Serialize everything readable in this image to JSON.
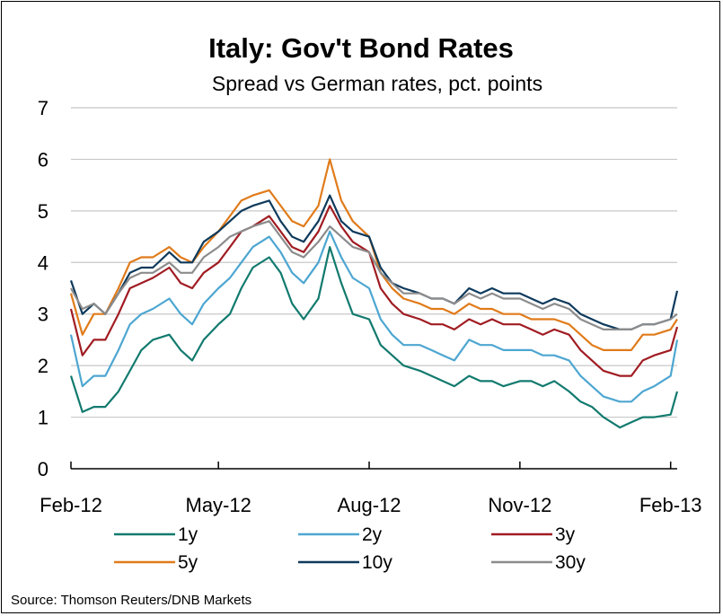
{
  "chart_data": {
    "type": "line",
    "title": "Italy: Gov't Bond Rates",
    "subtitle": "Spread vs German rates, pct. points",
    "source": "Source: Thomson Reuters/DNB Markets",
    "xlabel": "",
    "ylabel": "",
    "ylim": [
      0,
      7
    ],
    "yticks": [
      0,
      1,
      2,
      3,
      4,
      5,
      6,
      7
    ],
    "xticks": [
      "Feb-12",
      "May-12",
      "Aug-12",
      "Nov-12",
      "Feb-13"
    ],
    "grid": true,
    "legend": "bottom",
    "x": [
      "2012-02-01",
      "2012-02-08",
      "2012-02-15",
      "2012-02-22",
      "2012-03-01",
      "2012-03-08",
      "2012-03-15",
      "2012-03-22",
      "2012-04-01",
      "2012-04-08",
      "2012-04-15",
      "2012-04-22",
      "2012-05-01",
      "2012-05-08",
      "2012-05-15",
      "2012-05-22",
      "2012-06-01",
      "2012-06-08",
      "2012-06-15",
      "2012-06-22",
      "2012-07-01",
      "2012-07-08",
      "2012-07-15",
      "2012-07-22",
      "2012-08-01",
      "2012-08-08",
      "2012-08-15",
      "2012-08-22",
      "2012-09-01",
      "2012-09-08",
      "2012-09-15",
      "2012-09-22",
      "2012-10-01",
      "2012-10-08",
      "2012-10-15",
      "2012-10-22",
      "2012-11-01",
      "2012-11-08",
      "2012-11-15",
      "2012-11-22",
      "2012-12-01",
      "2012-12-08",
      "2012-12-15",
      "2012-12-22",
      "2013-01-01",
      "2013-01-08",
      "2013-01-15",
      "2013-01-22",
      "2013-02-01",
      "2013-02-05"
    ],
    "series": [
      {
        "name": "1y",
        "color": "#127a6e",
        "values": [
          1.8,
          1.1,
          1.2,
          1.2,
          1.5,
          1.9,
          2.3,
          2.5,
          2.6,
          2.3,
          2.1,
          2.5,
          2.8,
          3.0,
          3.5,
          3.9,
          4.1,
          3.8,
          3.2,
          2.9,
          3.3,
          4.3,
          3.6,
          3.0,
          2.9,
          2.4,
          2.2,
          2.0,
          1.9,
          1.8,
          1.7,
          1.6,
          1.8,
          1.7,
          1.7,
          1.6,
          1.7,
          1.7,
          1.6,
          1.7,
          1.5,
          1.3,
          1.2,
          1.0,
          0.8,
          0.9,
          1.0,
          1.0,
          1.05,
          1.5
        ]
      },
      {
        "name": "2y",
        "color": "#4da6d1",
        "values": [
          2.6,
          1.6,
          1.8,
          1.8,
          2.3,
          2.8,
          3.0,
          3.1,
          3.3,
          3.0,
          2.8,
          3.2,
          3.5,
          3.7,
          4.0,
          4.3,
          4.5,
          4.2,
          3.8,
          3.6,
          4.0,
          4.6,
          4.1,
          3.7,
          3.5,
          2.9,
          2.6,
          2.4,
          2.4,
          2.3,
          2.2,
          2.1,
          2.5,
          2.4,
          2.4,
          2.3,
          2.3,
          2.3,
          2.2,
          2.2,
          2.1,
          1.8,
          1.6,
          1.4,
          1.3,
          1.3,
          1.5,
          1.6,
          1.8,
          2.5
        ]
      },
      {
        "name": "3y",
        "color": "#a01c22",
        "values": [
          3.1,
          2.2,
          2.5,
          2.5,
          3.0,
          3.5,
          3.6,
          3.7,
          3.9,
          3.6,
          3.5,
          3.8,
          4.0,
          4.3,
          4.6,
          4.7,
          4.9,
          4.6,
          4.3,
          4.2,
          4.6,
          5.1,
          4.7,
          4.4,
          4.2,
          3.5,
          3.2,
          3.0,
          2.9,
          2.8,
          2.8,
          2.7,
          2.9,
          2.8,
          2.9,
          2.8,
          2.8,
          2.7,
          2.6,
          2.7,
          2.6,
          2.3,
          2.1,
          1.9,
          1.8,
          1.8,
          2.1,
          2.2,
          2.3,
          2.75
        ]
      },
      {
        "name": "5y",
        "color": "#e07b1a",
        "values": [
          3.4,
          2.6,
          3.0,
          3.0,
          3.5,
          4.0,
          4.1,
          4.1,
          4.3,
          4.1,
          4.0,
          4.3,
          4.6,
          4.9,
          5.2,
          5.3,
          5.4,
          5.1,
          4.8,
          4.7,
          5.1,
          6.0,
          5.2,
          4.8,
          4.5,
          3.8,
          3.5,
          3.3,
          3.2,
          3.1,
          3.1,
          3.0,
          3.2,
          3.1,
          3.1,
          3.0,
          3.0,
          2.9,
          2.9,
          2.9,
          2.8,
          2.6,
          2.4,
          2.3,
          2.3,
          2.3,
          2.6,
          2.6,
          2.7,
          2.9
        ]
      },
      {
        "name": "10y",
        "color": "#0e3a5c",
        "values": [
          3.65,
          3.0,
          3.2,
          3.0,
          3.4,
          3.8,
          3.9,
          3.9,
          4.2,
          4.0,
          4.0,
          4.4,
          4.6,
          4.8,
          5.0,
          5.1,
          5.2,
          4.8,
          4.5,
          4.4,
          4.8,
          5.3,
          4.8,
          4.6,
          4.5,
          3.9,
          3.6,
          3.5,
          3.4,
          3.3,
          3.3,
          3.2,
          3.5,
          3.4,
          3.5,
          3.4,
          3.4,
          3.3,
          3.2,
          3.3,
          3.2,
          3.0,
          2.9,
          2.8,
          2.7,
          2.7,
          2.8,
          2.8,
          2.9,
          3.45
        ]
      },
      {
        "name": "30y",
        "color": "#8c8c8c",
        "values": [
          3.5,
          3.1,
          3.2,
          3.0,
          3.4,
          3.7,
          3.8,
          3.8,
          4.0,
          3.8,
          3.8,
          4.1,
          4.3,
          4.5,
          4.6,
          4.7,
          4.8,
          4.5,
          4.2,
          4.1,
          4.4,
          4.7,
          4.5,
          4.3,
          4.2,
          3.8,
          3.6,
          3.4,
          3.4,
          3.3,
          3.3,
          3.2,
          3.4,
          3.3,
          3.4,
          3.3,
          3.3,
          3.2,
          3.1,
          3.2,
          3.1,
          2.9,
          2.8,
          2.7,
          2.7,
          2.7,
          2.8,
          2.8,
          2.9,
          3.0
        ]
      }
    ]
  }
}
